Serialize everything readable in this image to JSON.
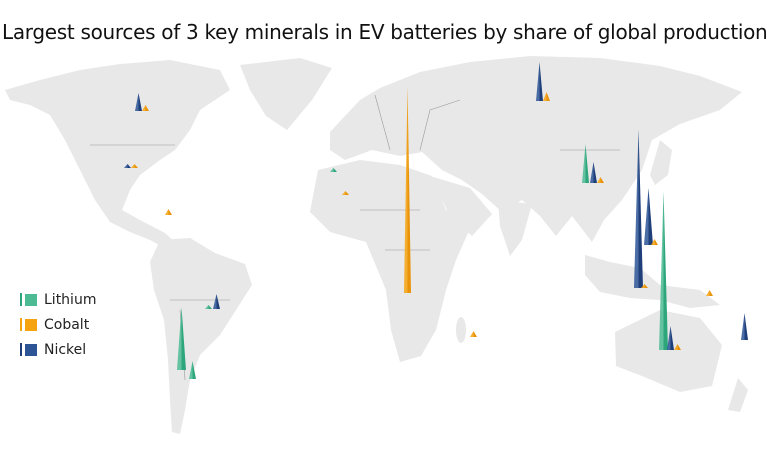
{
  "title": "Largest sources of 3 key minerals in EV batteries by share of global production",
  "colors": {
    "land": "#e8e8e8",
    "border": "#9a9a9a",
    "Lithium": "#4cbb93",
    "Cobalt": "#f5a30f",
    "Nickel": "#2d5596"
  },
  "legend": [
    {
      "label": "Lithium",
      "icon": "lithium-swatch"
    },
    {
      "label": "Cobalt",
      "icon": "cobalt-swatch"
    },
    {
      "label": "Nickel",
      "icon": "nickel-swatch"
    }
  ],
  "chart_data": {
    "type": "spike-map",
    "measure": "share of global production (%)",
    "spikes": [
      {
        "country": "DR Congo",
        "mineral": "Cobalt",
        "value": 69
      },
      {
        "country": "Australia",
        "mineral": "Lithium",
        "value": 53
      },
      {
        "country": "Chile",
        "mineral": "Lithium",
        "value": 21
      },
      {
        "country": "China",
        "mineral": "Lithium",
        "value": 13
      },
      {
        "country": "Argentina",
        "mineral": "Lithium",
        "value": 6
      },
      {
        "country": "Brazil",
        "mineral": "Lithium",
        "value": 1
      },
      {
        "country": "Portugal",
        "mineral": "Lithium",
        "value": 1
      },
      {
        "country": "Indonesia",
        "mineral": "Nickel",
        "value": 53
      },
      {
        "country": "Philippines",
        "mineral": "Nickel",
        "value": 19
      },
      {
        "country": "Russia",
        "mineral": "Nickel",
        "value": 13
      },
      {
        "country": "New Caledonia",
        "mineral": "Nickel",
        "value": 9
      },
      {
        "country": "Australia",
        "mineral": "Nickel",
        "value": 8
      },
      {
        "country": "China",
        "mineral": "Nickel",
        "value": 7
      },
      {
        "country": "Canada",
        "mineral": "Nickel",
        "value": 6
      },
      {
        "country": "Brazil",
        "mineral": "Nickel",
        "value": 5
      },
      {
        "country": "United States",
        "mineral": "Nickel",
        "value": 1
      },
      {
        "country": "Russia",
        "mineral": "Cobalt",
        "value": 3
      },
      {
        "country": "Australia",
        "mineral": "Cobalt",
        "value": 2
      },
      {
        "country": "Philippines",
        "mineral": "Cobalt",
        "value": 2
      },
      {
        "country": "Cuba",
        "mineral": "Cobalt",
        "value": 2
      },
      {
        "country": "Madagascar",
        "mineral": "Cobalt",
        "value": 2
      },
      {
        "country": "Papua New Guinea",
        "mineral": "Cobalt",
        "value": 2
      },
      {
        "country": "Canada",
        "mineral": "Cobalt",
        "value": 2
      },
      {
        "country": "China",
        "mineral": "Cobalt",
        "value": 2
      },
      {
        "country": "Morocco",
        "mineral": "Cobalt",
        "value": 1
      },
      {
        "country": "Indonesia",
        "mineral": "Cobalt",
        "value": 1
      },
      {
        "country": "United States",
        "mineral": "Cobalt",
        "value": 1
      }
    ]
  }
}
